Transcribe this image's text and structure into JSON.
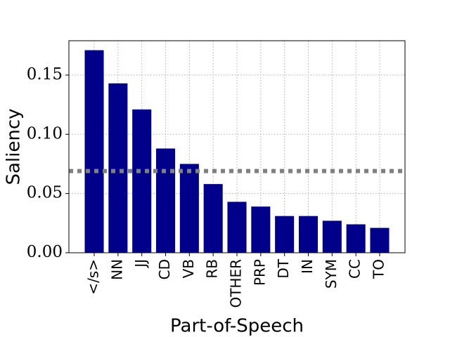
{
  "chart_data": {
    "type": "bar",
    "x_label": "Part-of-Speech",
    "y_label": "Saliency",
    "categories": [
      "</s>",
      "NN",
      "JJ",
      "CD",
      "VB",
      "RB",
      "OTHER",
      "PRP",
      "DT",
      "IN",
      "SYM",
      "CC",
      "TO"
    ],
    "values": [
      0.171,
      0.143,
      0.121,
      0.088,
      0.075,
      0.058,
      0.043,
      0.039,
      0.031,
      0.031,
      0.027,
      0.024,
      0.021
    ],
    "color": "#00008b",
    "ylim": [
      0,
      0.179
    ],
    "yticks": [
      {
        "value": 0,
        "label": "0.00"
      },
      {
        "value": 0.05,
        "label": "0.05"
      },
      {
        "value": 0.1,
        "label": "0.10"
      },
      {
        "value": 0.15,
        "label": "0.15"
      }
    ],
    "grid": true,
    "reference_line": {
      "value": 0.069,
      "color": "#808080"
    }
  }
}
